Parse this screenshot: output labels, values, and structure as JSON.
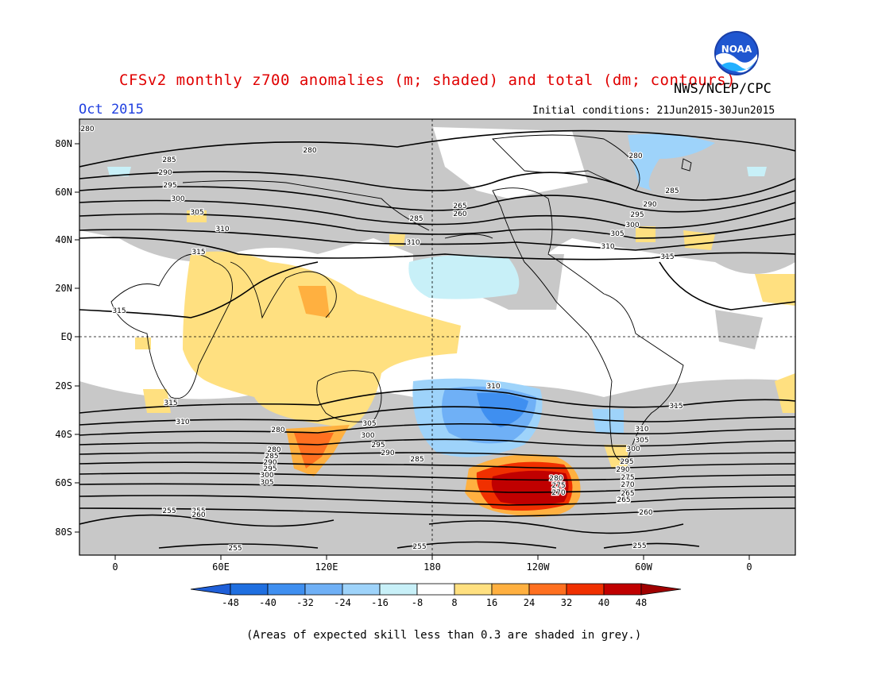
{
  "title": "CFSv2 monthly z700 anomalies (m; shaded) and total (dm; contours)",
  "agency": "NWS/NCEP/CPC",
  "logo_text": "NOAA",
  "month": "Oct 2015",
  "initial_conditions": "Initial conditions: 21Jun2015-30Jun2015",
  "caption": "(Areas of expected skill less than 0.3 are shaded in grey.)",
  "lat_labels": [
    "80N",
    "60N",
    "40N",
    "20N",
    "EQ",
    "20S",
    "40S",
    "60S",
    "80S"
  ],
  "lon_labels": [
    "0",
    "60E",
    "120E",
    "180",
    "120W",
    "60W",
    "0"
  ],
  "colorbar": {
    "ticks": [
      "-48",
      "-40",
      "-32",
      "-24",
      "-16",
      "-8",
      "8",
      "16",
      "24",
      "32",
      "40",
      "48"
    ],
    "colors": [
      "#1f6fe0",
      "#3f8ff0",
      "#6fb0f6",
      "#9ed3fa",
      "#c8f0f8",
      "#ffffff",
      "#ffe080",
      "#ffb040",
      "#ff7020",
      "#f03000",
      "#c00000"
    ],
    "end_low": "#1f5fd8",
    "end_high": "#a00000"
  },
  "contour_labels": [
    "280",
    "280",
    "285",
    "290",
    "295",
    "300",
    "305",
    "310",
    "315",
    "315",
    "310",
    "315",
    "310",
    "305",
    "300",
    "295",
    "290",
    "285",
    "280",
    "275",
    "270",
    "265",
    "260",
    "255",
    "255",
    "260",
    "280",
    "255",
    "255",
    "280",
    "275",
    "270",
    "265",
    "260",
    "255",
    "285",
    "290",
    "295",
    "300",
    "305",
    "310",
    "315",
    "280",
    "285",
    "290",
    "295",
    "300",
    "305",
    "310",
    "315",
    "310",
    "305",
    "300",
    "295",
    "290",
    "285",
    "265",
    "260",
    "255"
  ]
}
